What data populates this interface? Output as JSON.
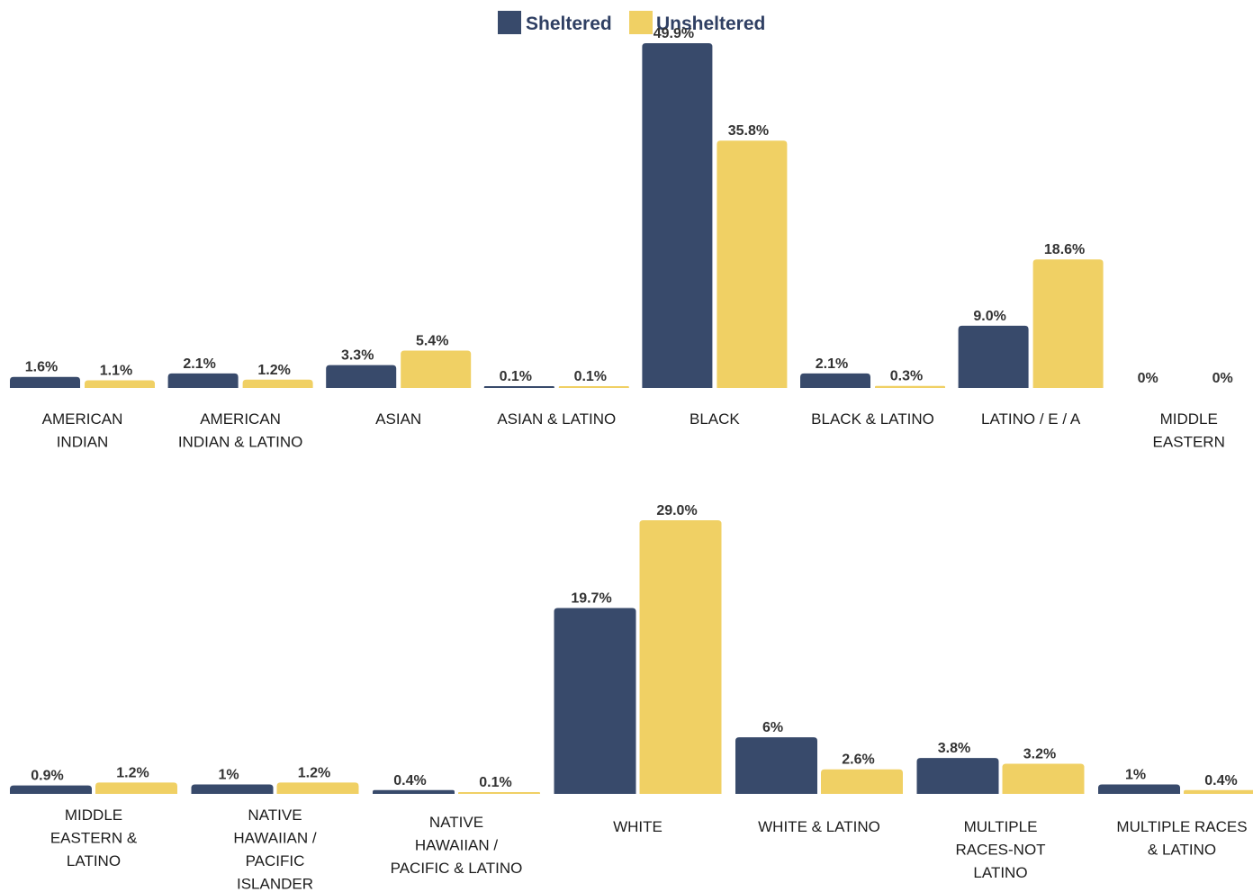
{
  "colors": {
    "sheltered": "#384a6b",
    "unsheltered": "#f0d064"
  },
  "legend": [
    {
      "label": "Sheltered",
      "color": "#384a6b"
    },
    {
      "label": "Unsheltered",
      "color": "#f0d064"
    }
  ],
  "chart_data": [
    {
      "type": "bar",
      "legend_position": "top-center",
      "grid": false,
      "categories": [
        [
          "AMERICAN",
          "INDIAN"
        ],
        [
          "AMERICAN",
          "INDIAN & LATINO"
        ],
        [
          "ASIAN"
        ],
        [
          "ASIAN & LATINO"
        ],
        [
          "BLACK"
        ],
        [
          "BLACK & LATINO"
        ],
        [
          "LATINO / E / A"
        ],
        [
          "MIDDLE",
          "EASTERN"
        ]
      ],
      "series": [
        {
          "name": "Sheltered",
          "values": [
            1.6,
            2.1,
            3.3,
            0.1,
            49.9,
            2.1,
            9.0,
            0
          ],
          "labels": [
            "1.6%",
            "2.1%",
            "3.3%",
            "0.1%",
            "49.9%",
            "2.1%",
            "9.0%",
            "0%"
          ]
        },
        {
          "name": "Unsheltered",
          "values": [
            1.1,
            1.2,
            5.4,
            0.1,
            35.8,
            0.3,
            18.6,
            0
          ],
          "labels": [
            "1.1%",
            "1.2%",
            "5.4%",
            "0.1%",
            "35.8%",
            "0.3%",
            "18.6%",
            "0%"
          ]
        }
      ]
    },
    {
      "type": "bar",
      "grid": false,
      "categories": [
        [
          "MIDDLE",
          "EASTERN &",
          "LATINO"
        ],
        [
          "NATIVE",
          "HAWAIIAN /",
          "PACIFIC",
          "ISLANDER"
        ],
        [
          "NATIVE",
          "HAWAIIAN /",
          "PACIFIC & LATINO"
        ],
        [
          "WHITE"
        ],
        [
          "WHITE & LATINO"
        ],
        [
          "MULTIPLE",
          "RACES-NOT",
          "LATINO"
        ],
        [
          "MULTIPLE RACES",
          "& LATINO"
        ]
      ],
      "series": [
        {
          "name": "Sheltered",
          "values": [
            0.9,
            1,
            0.4,
            19.7,
            6,
            3.8,
            1
          ],
          "labels": [
            "0.9%",
            "1%",
            "0.4%",
            "19.7%",
            "6%",
            "3.8%",
            "1%"
          ]
        },
        {
          "name": "Unsheltered",
          "values": [
            1.2,
            1.2,
            0.1,
            29.0,
            2.6,
            3.2,
            0.4
          ],
          "labels": [
            "1.2%",
            "1.2%",
            "0.1%",
            "29.0%",
            "2.6%",
            "3.2%",
            "0.4%"
          ]
        }
      ]
    }
  ]
}
